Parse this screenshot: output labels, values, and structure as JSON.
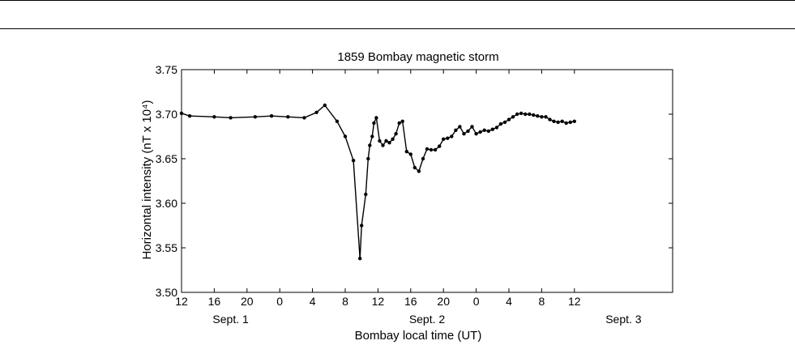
{
  "chart_data": {
    "type": "line",
    "title": "1859 Bombay magnetic storm",
    "xlabel": "Bombay local time (UT)",
    "ylabel": "Horizontal intensity (nT x 10⁴)",
    "ylim": [
      3.5,
      3.75
    ],
    "xlim": [
      0,
      60
    ],
    "x_unit_note": "hours from Sept. 1 12:00",
    "x_ticks": [
      {
        "x": 0,
        "label": "12"
      },
      {
        "x": 4,
        "label": "16"
      },
      {
        "x": 8,
        "label": "20"
      },
      {
        "x": 12,
        "label": "0"
      },
      {
        "x": 16,
        "label": "4"
      },
      {
        "x": 20,
        "label": "8"
      },
      {
        "x": 24,
        "label": "12"
      },
      {
        "x": 28,
        "label": "16"
      },
      {
        "x": 32,
        "label": "20"
      },
      {
        "x": 36,
        "label": "0"
      },
      {
        "x": 40,
        "label": "4"
      },
      {
        "x": 44,
        "label": "8"
      },
      {
        "x": 48,
        "label": "12"
      }
    ],
    "y_ticks": [
      "3.50",
      "3.55",
      "3.60",
      "3.65",
      "3.70",
      "3.75"
    ],
    "day_labels": [
      {
        "x": 6,
        "label": "Sept. 1"
      },
      {
        "x": 30,
        "label": "Sept. 2"
      },
      {
        "x": 54,
        "label": "Sept. 3"
      }
    ],
    "grid": false,
    "series": [
      {
        "x": [
          0,
          1,
          4,
          6,
          9,
          11,
          13,
          15,
          16.5,
          17.5,
          19,
          20,
          21,
          21.8,
          22,
          22.5,
          22.8,
          23,
          23.3,
          23.5,
          23.8,
          24.2,
          24.6,
          25,
          25.4,
          25.8,
          26.2,
          26.6,
          27,
          27.5,
          28,
          28.5,
          29,
          29.5,
          30,
          30.5,
          31,
          31.5,
          32,
          32.5,
          33,
          33.5,
          34,
          34.5,
          35,
          35.5,
          36,
          36.5,
          37,
          37.5,
          38,
          38.5,
          39,
          39.5,
          40,
          40.5,
          41,
          41.5,
          42,
          42.5,
          43,
          43.5,
          44,
          44.5,
          45,
          45.5,
          46,
          46.5,
          47,
          47.5,
          48
        ],
        "y": [
          3.701,
          3.698,
          3.697,
          3.696,
          3.697,
          3.698,
          3.697,
          3.696,
          3.702,
          3.71,
          3.692,
          3.675,
          3.648,
          3.538,
          3.575,
          3.61,
          3.65,
          3.665,
          3.675,
          3.69,
          3.696,
          3.67,
          3.665,
          3.67,
          3.668,
          3.672,
          3.678,
          3.69,
          3.692,
          3.658,
          3.655,
          3.64,
          3.636,
          3.65,
          3.661,
          3.66,
          3.66,
          3.664,
          3.672,
          3.673,
          3.675,
          3.682,
          3.686,
          3.678,
          3.681,
          3.686,
          3.678,
          3.68,
          3.682,
          3.681,
          3.683,
          3.685,
          3.689,
          3.691,
          3.694,
          3.697,
          3.7,
          3.701,
          3.7,
          3.7,
          3.699,
          3.698,
          3.697,
          3.697,
          3.694,
          3.692,
          3.691,
          3.692,
          3.69,
          3.691,
          3.692
        ]
      }
    ]
  }
}
